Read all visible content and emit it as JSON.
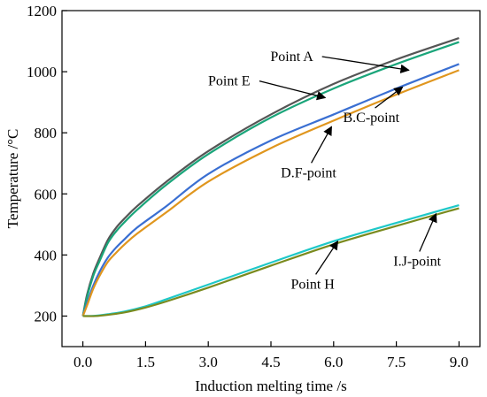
{
  "chart_data": {
    "type": "line",
    "xlabel": "Induction melting time /s",
    "ylabel": "Temperature /°C",
    "xlim": [
      -0.5,
      9.5
    ],
    "ylim": [
      100,
      1200
    ],
    "xticks": [
      0.0,
      1.5,
      3.0,
      4.5,
      6.0,
      7.5,
      9.0
    ],
    "xtick_labels": [
      "0.0",
      "1.5",
      "3.0",
      "4.5",
      "6.0",
      "7.5",
      "9.0"
    ],
    "yticks": [
      200,
      400,
      600,
      800,
      1000,
      1200
    ],
    "ytick_labels": [
      "200",
      "400",
      "600",
      "800",
      "1000",
      "1200"
    ],
    "grid": false,
    "legend": "none",
    "series": [
      {
        "color": "#555555",
        "x": [
          0,
          0.1,
          0.25,
          0.4,
          0.6,
          0.8,
          1,
          1.3,
          2,
          3,
          4.5,
          6,
          7.5,
          9
        ],
        "y": [
          200,
          270,
          340,
          390,
          450,
          490,
          520,
          560,
          640,
          740,
          860,
          960,
          1040,
          1110
        ]
      },
      {
        "color": "#1aa57a",
        "x": [
          0,
          0.1,
          0.25,
          0.4,
          0.6,
          0.8,
          1,
          1.3,
          2,
          3,
          4.5,
          6,
          7.5,
          9
        ],
        "y": [
          200,
          262,
          332,
          380,
          440,
          478,
          508,
          548,
          630,
          730,
          850,
          945,
          1025,
          1097
        ]
      },
      {
        "color": "#3a6fd2",
        "x": [
          0,
          0.1,
          0.25,
          0.4,
          0.6,
          0.8,
          1,
          1.3,
          2,
          3,
          4.5,
          6,
          7.5,
          9
        ],
        "y": [
          200,
          242,
          300,
          345,
          392,
          425,
          452,
          490,
          560,
          665,
          775,
          860,
          945,
          1025
        ]
      },
      {
        "color": "#e0961e",
        "x": [
          0,
          0.1,
          0.25,
          0.4,
          0.6,
          0.8,
          1,
          1.3,
          2,
          3,
          4.5,
          6,
          7.5,
          9
        ],
        "y": [
          200,
          235,
          290,
          332,
          378,
          408,
          435,
          470,
          540,
          640,
          750,
          840,
          925,
          1005
        ]
      },
      {
        "color": "#1ec8c8",
        "x": [
          0,
          0.3,
          0.6,
          1,
          1.5,
          2,
          3,
          4.5,
          6,
          7.5,
          9
        ],
        "y": [
          200,
          201,
          206,
          215,
          232,
          255,
          303,
          375,
          445,
          505,
          563
        ]
      },
      {
        "color": "#7a8a1e",
        "x": [
          0,
          0.3,
          0.6,
          1,
          1.5,
          2,
          3,
          4.5,
          6,
          7.5,
          9
        ],
        "y": [
          200,
          200,
          204,
          212,
          228,
          248,
          293,
          365,
          435,
          495,
          553
        ]
      }
    ],
    "annotations": [
      {
        "text": "Point A",
        "text_pos": [
          5.0,
          1035
        ],
        "arrow_to": [
          7.8,
          1005
        ]
      },
      {
        "text": "Point E",
        "text_pos": [
          3.5,
          955
        ],
        "arrow_to": [
          5.8,
          915
        ]
      },
      {
        "text": "B.C-point",
        "text_pos": [
          6.9,
          835
        ],
        "arrow_to": [
          7.65,
          950
        ]
      },
      {
        "text": "D.F-point",
        "text_pos": [
          5.4,
          655
        ],
        "arrow_to": [
          5.95,
          820
        ]
      },
      {
        "text": "Point H",
        "text_pos": [
          5.5,
          290
        ],
        "arrow_to": [
          6.1,
          445
        ]
      },
      {
        "text": "I.J-point",
        "text_pos": [
          8.0,
          365
        ],
        "arrow_to": [
          8.45,
          535
        ]
      }
    ]
  }
}
